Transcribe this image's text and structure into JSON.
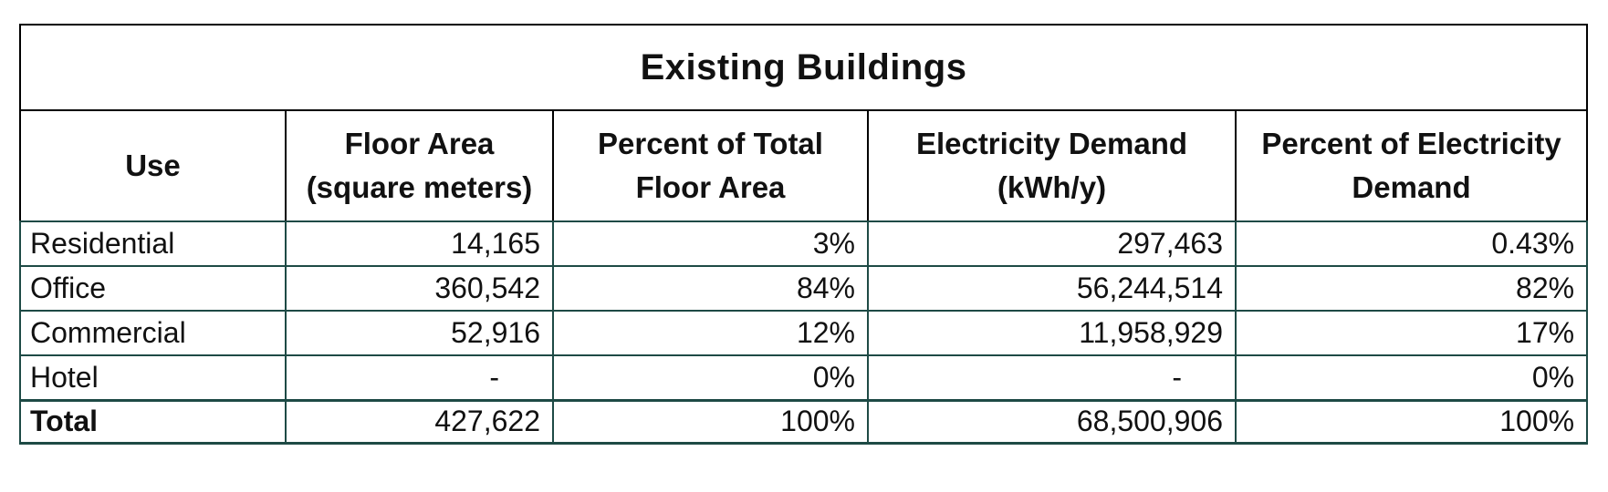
{
  "chart_data": {
    "type": "table",
    "title": "Existing Buildings",
    "columns": [
      "Use",
      "Floor Area\n(square meters)",
      "Percent of Total\nFloor Area",
      "Electricity Demand\n(kWh/y)",
      "Percent of Electricity\nDemand"
    ],
    "rows": [
      [
        "Residential",
        "14,165",
        "3%",
        "297,463",
        "0.43%"
      ],
      [
        "Office",
        "360,542",
        "84%",
        "56,244,514",
        "82%"
      ],
      [
        "Commercial",
        "52,916",
        "12%",
        "11,958,929",
        "17%"
      ],
      [
        "Hotel",
        "-",
        "0%",
        "-",
        "0%"
      ]
    ],
    "total_row": [
      "Total",
      "427,622",
      "100%",
      "68,500,906",
      "100%"
    ],
    "colors": {
      "border_black": "#000000",
      "border_teal": "#1e4a45",
      "text": "#111111",
      "background": "#ffffff"
    }
  }
}
